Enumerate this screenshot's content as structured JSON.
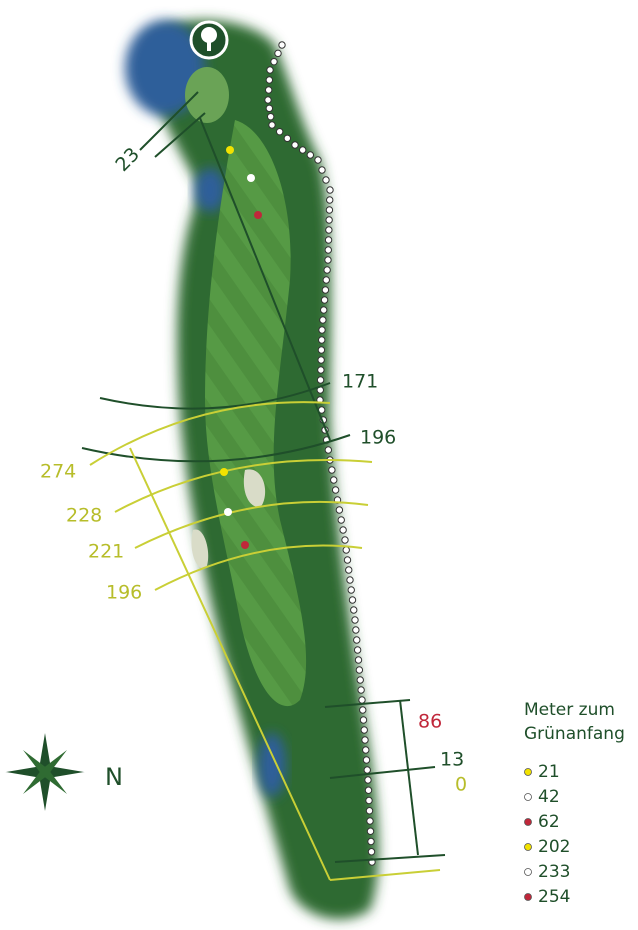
{
  "distances": {
    "green_depth": "23",
    "dark_arcs": [
      "171",
      "196"
    ],
    "yellow_arcs": [
      "274",
      "228",
      "221",
      "196"
    ],
    "hazard_right": "86",
    "tee_dark": "13",
    "tee_yellow": "0"
  },
  "compass": {
    "label": "N"
  },
  "legend": {
    "title_lines": [
      "Meter zum",
      "Grünanfang"
    ],
    "items": [
      {
        "label": "21",
        "color": "#f2e200"
      },
      {
        "label": "42",
        "color": "#ffffff"
      },
      {
        "label": "62",
        "color": "#c0273a"
      },
      {
        "label": "202",
        "color": "#f2e200"
      },
      {
        "label": "233",
        "color": "#ffffff"
      },
      {
        "label": "254",
        "color": "#c0273a"
      }
    ]
  }
}
